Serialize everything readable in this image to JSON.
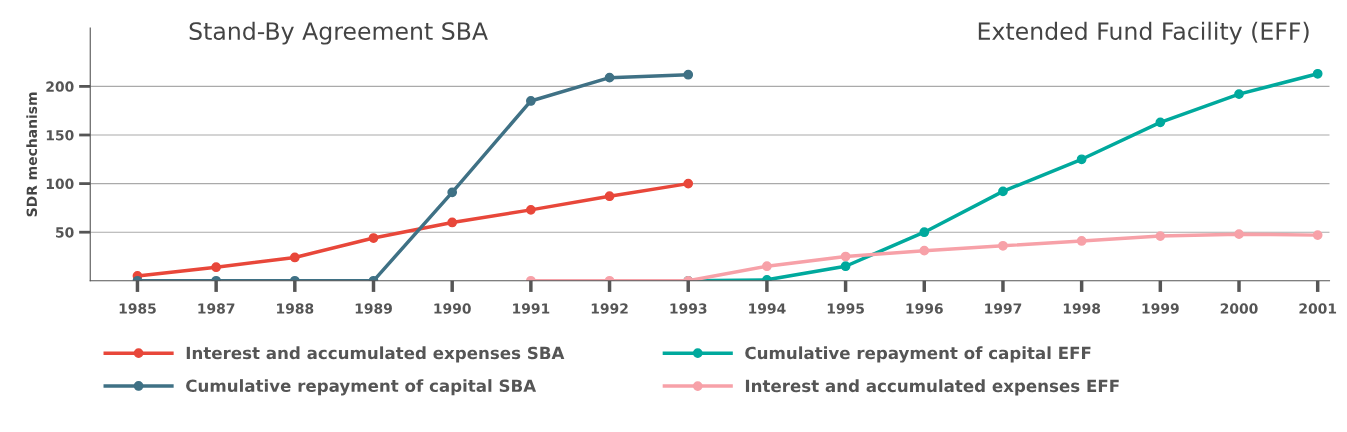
{
  "chart_data": {
    "type": "line",
    "ylabel": "SDR mechanism",
    "annotations": [
      "Stand-By Agreement SBA",
      "Extended Fund Facility (EFF)"
    ],
    "categories": [
      "1985",
      "1987",
      "1988",
      "1989",
      "1990",
      "1991",
      "1992",
      "1993",
      "1994",
      "1995",
      "1996",
      "1997",
      "1998",
      "1999",
      "2000",
      "2001"
    ],
    "series": [
      {
        "name": "Interest and accumulated expenses SBA",
        "color": "#e8473a",
        "values": [
          5,
          14,
          24,
          44,
          60,
          73,
          87,
          100,
          null,
          null,
          null,
          null,
          null,
          null,
          null,
          null
        ]
      },
      {
        "name": "Cumulative repayment of capital SBA",
        "color": "#3f7185",
        "values": [
          0,
          0,
          0,
          0,
          91,
          185,
          209,
          212,
          null,
          null,
          null,
          null,
          null,
          null,
          null,
          null
        ]
      },
      {
        "name": "Cumulative repayment of capital EFF",
        "color": "#00a99d",
        "values": [
          null,
          null,
          null,
          null,
          null,
          null,
          null,
          0,
          1,
          15,
          50,
          92,
          125,
          163,
          192,
          213
        ]
      },
      {
        "name": "Interest and accumulated expenses EFF",
        "color": "#f7a1a8",
        "values": [
          null,
          null,
          null,
          null,
          null,
          0,
          0,
          0,
          15,
          25,
          31,
          36,
          41,
          46,
          48,
          47
        ]
      }
    ],
    "ylim": [
      0,
      260
    ],
    "yticks": [
      50,
      100,
      150,
      200
    ],
    "grid": "y",
    "legend": "bottom",
    "marker": "circle",
    "line_style": "solid"
  }
}
